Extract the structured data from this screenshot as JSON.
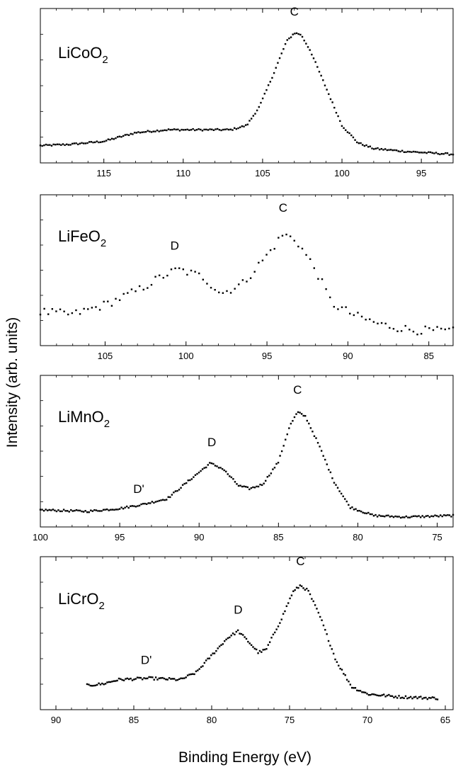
{
  "figure": {
    "ylabel": "Intensity (arb. units)",
    "xlabel": "Binding Energy (eV)"
  },
  "chart_data": [
    {
      "type": "scatter",
      "title_main": "LiCoO",
      "title_sub": "2",
      "xlim": [
        119,
        93
      ],
      "ylim": [
        0,
        1
      ],
      "xticks": [
        115,
        110,
        105,
        100,
        95
      ],
      "xticklabels": [
        "115",
        "110",
        "105",
        "100",
        "95"
      ],
      "anchors": [
        [
          119,
          0.08
        ],
        [
          117,
          0.09
        ],
        [
          115,
          0.11
        ],
        [
          113,
          0.17
        ],
        [
          111,
          0.19
        ],
        [
          109,
          0.19
        ],
        [
          107,
          0.19
        ],
        [
          106,
          0.22
        ],
        [
          105.2,
          0.35
        ],
        [
          104.3,
          0.58
        ],
        [
          103.5,
          0.8
        ],
        [
          103,
          0.86
        ],
        [
          102.6,
          0.85
        ],
        [
          102,
          0.74
        ],
        [
          101,
          0.48
        ],
        [
          100,
          0.22
        ],
        [
          99,
          0.1
        ],
        [
          98,
          0.06
        ],
        [
          96,
          0.04
        ],
        [
          93,
          0.02
        ]
      ],
      "noise": 0.006,
      "npoints": 220,
      "peaks": [
        {
          "text": "C",
          "x": 103,
          "y": 0.98
        }
      ]
    },
    {
      "type": "scatter",
      "title_main": "LiFeO",
      "title_sub": "2",
      "xlim": [
        109,
        83.5
      ],
      "ylim": [
        0,
        1
      ],
      "xticks": [
        105,
        100,
        95,
        90,
        85
      ],
      "xticklabels": [
        "105",
        "100",
        "95",
        "90",
        "85"
      ],
      "anchors": [
        [
          109,
          0.2
        ],
        [
          107,
          0.18
        ],
        [
          105,
          0.25
        ],
        [
          103,
          0.35
        ],
        [
          101.5,
          0.45
        ],
        [
          100.5,
          0.5
        ],
        [
          99,
          0.45
        ],
        [
          97.8,
          0.33
        ],
        [
          96.5,
          0.4
        ],
        [
          95,
          0.6
        ],
        [
          94,
          0.75
        ],
        [
          93.2,
          0.71
        ],
        [
          92,
          0.5
        ],
        [
          91,
          0.26
        ],
        [
          89.5,
          0.17
        ],
        [
          88,
          0.11
        ],
        [
          86,
          0.07
        ],
        [
          83.5,
          0.06
        ]
      ],
      "noise": 0.03,
      "npoints": 105,
      "peaks": [
        {
          "text": "C",
          "x": 94,
          "y": 0.91
        },
        {
          "text": "D",
          "x": 100.7,
          "y": 0.64
        }
      ]
    },
    {
      "type": "scatter",
      "title_main": "LiMnO",
      "title_sub": "2",
      "xlim": [
        100,
        74
      ],
      "ylim": [
        0,
        1
      ],
      "xticks": [
        100,
        95,
        90,
        85,
        80,
        75
      ],
      "xticklabels": [
        "100",
        "95",
        "90",
        "85",
        "80",
        "75"
      ],
      "anchors": [
        [
          100,
          0.08
        ],
        [
          97,
          0.07
        ],
        [
          95,
          0.09
        ],
        [
          93.5,
          0.12
        ],
        [
          92,
          0.16
        ],
        [
          90.5,
          0.3
        ],
        [
          89.3,
          0.41
        ],
        [
          88.5,
          0.37
        ],
        [
          87.5,
          0.25
        ],
        [
          86.8,
          0.23
        ],
        [
          86,
          0.26
        ],
        [
          85,
          0.42
        ],
        [
          84.3,
          0.67
        ],
        [
          83.8,
          0.77
        ],
        [
          83.3,
          0.74
        ],
        [
          82.5,
          0.55
        ],
        [
          81.5,
          0.28
        ],
        [
          80.5,
          0.1
        ],
        [
          79,
          0.04
        ],
        [
          77,
          0.03
        ],
        [
          74,
          0.04
        ]
      ],
      "noise": 0.007,
      "npoints": 230,
      "peaks": [
        {
          "text": "C",
          "x": 83.8,
          "y": 0.9
        },
        {
          "text": "D",
          "x": 89.2,
          "y": 0.53
        },
        {
          "text": "D'",
          "x": 93.8,
          "y": 0.2
        }
      ]
    },
    {
      "type": "scatter",
      "title_main": "LiCrO",
      "title_sub": "2",
      "xlim": [
        91,
        64.5
      ],
      "ylim": [
        0,
        1
      ],
      "xticks": [
        90,
        85,
        80,
        75,
        70,
        65
      ],
      "xticklabels": [
        "90",
        "85",
        "80",
        "75",
        "70",
        "65"
      ],
      "anchors": [
        [
          88,
          0.13
        ],
        [
          87,
          0.14
        ],
        [
          86,
          0.17
        ],
        [
          84,
          0.18
        ],
        [
          82,
          0.17
        ],
        [
          81,
          0.22
        ],
        [
          80,
          0.34
        ],
        [
          79,
          0.46
        ],
        [
          78.3,
          0.51
        ],
        [
          77.5,
          0.42
        ],
        [
          77,
          0.36
        ],
        [
          76.5,
          0.38
        ],
        [
          75.5,
          0.6
        ],
        [
          74.8,
          0.78
        ],
        [
          74.3,
          0.83
        ],
        [
          73.8,
          0.79
        ],
        [
          73,
          0.6
        ],
        [
          72,
          0.3
        ],
        [
          71,
          0.12
        ],
        [
          70,
          0.07
        ],
        [
          68,
          0.05
        ],
        [
          65.5,
          0.04
        ]
      ],
      "noise": 0.009,
      "npoints": 210,
      "peaks": [
        {
          "text": "C",
          "x": 74.3,
          "y": 0.97
        },
        {
          "text": "D",
          "x": 78.3,
          "y": 0.63
        },
        {
          "text": "D'",
          "x": 84.2,
          "y": 0.28
        }
      ]
    }
  ]
}
